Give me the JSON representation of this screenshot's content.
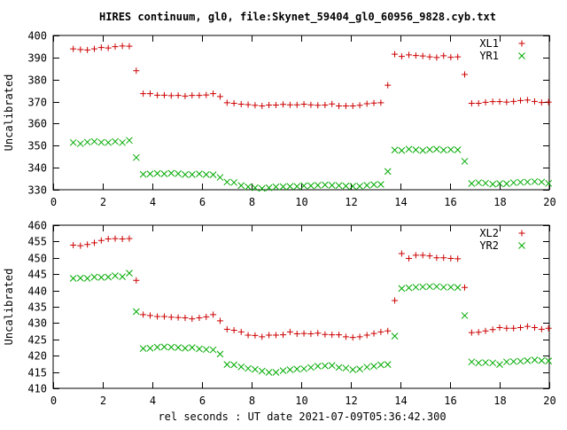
{
  "title": "HIRES continuum, gl0, file:Skynet_59404_gl0_60956_9828.cyb.txt",
  "xlabel": "rel seconds : UT date 2021-07-09T05:36:42.300",
  "chart_data": [
    {
      "type": "scatter",
      "ylabel": "Uncalibrated",
      "xlim": [
        0,
        20
      ],
      "ylim": [
        330,
        400
      ],
      "xticks": [
        0,
        2,
        4,
        6,
        8,
        10,
        12,
        14,
        16,
        18,
        20
      ],
      "yticks": [
        330,
        340,
        350,
        360,
        370,
        380,
        390,
        400
      ],
      "legend_position": "top-right",
      "x": [
        0.81,
        1.1,
        1.38,
        1.66,
        1.94,
        2.22,
        2.5,
        2.79,
        3.07,
        3.35,
        3.63,
        3.91,
        4.2,
        4.48,
        4.76,
        5.04,
        5.32,
        5.6,
        5.89,
        6.17,
        6.45,
        6.73,
        7.01,
        7.29,
        7.58,
        7.86,
        8.14,
        8.42,
        8.7,
        8.98,
        9.27,
        9.55,
        9.83,
        10.11,
        10.39,
        10.67,
        10.96,
        11.24,
        11.52,
        11.8,
        12.08,
        12.36,
        12.65,
        12.93,
        13.21,
        13.49,
        13.77,
        14.05,
        14.34,
        14.62,
        14.9,
        15.18,
        15.46,
        15.74,
        16.03,
        16.31,
        16.59,
        16.87,
        17.15,
        17.43,
        17.72,
        18.0,
        18.28,
        18.56,
        18.84,
        19.12,
        19.41,
        19.69,
        19.97
      ],
      "series": [
        {
          "name": "XL1",
          "marker": "plus",
          "color": "#cc0000",
          "values": [
            393.9,
            393.6,
            393.4,
            393.9,
            394.5,
            394.3,
            394.9,
            395.2,
            395.1,
            384.0,
            373.6,
            373.6,
            372.9,
            372.9,
            372.7,
            372.8,
            372.5,
            372.8,
            372.8,
            373.0,
            373.6,
            372.3,
            369.5,
            369.2,
            368.8,
            368.6,
            368.3,
            368.0,
            368.4,
            368.4,
            368.7,
            368.5,
            368.5,
            368.8,
            368.5,
            368.3,
            368.4,
            368.9,
            368.0,
            368.0,
            368.0,
            368.3,
            369.0,
            369.3,
            369.5,
            377.4,
            391.5,
            390.5,
            391.2,
            390.9,
            390.7,
            390.3,
            390.0,
            390.8,
            390.1,
            390.3,
            382.3,
            369.2,
            369.2,
            369.7,
            370.0,
            370.0,
            369.8,
            370.1,
            370.5,
            370.7,
            370.1,
            369.6,
            369.8
          ]
        },
        {
          "name": "YR1",
          "marker": "cross",
          "color": "#00aa00",
          "values": [
            351.4,
            350.9,
            351.6,
            351.9,
            351.5,
            351.4,
            351.9,
            351.4,
            352.4,
            344.6,
            337.0,
            337.2,
            337.4,
            337.2,
            337.5,
            337.3,
            336.9,
            336.9,
            337.2,
            336.9,
            336.8,
            335.6,
            333.5,
            333.3,
            331.9,
            331.3,
            330.9,
            330.6,
            330.9,
            331.3,
            331.4,
            331.5,
            331.5,
            331.8,
            331.8,
            332.0,
            332.2,
            332.0,
            331.9,
            331.7,
            331.6,
            331.6,
            332.0,
            332.3,
            332.4,
            338.3,
            348.0,
            347.8,
            348.4,
            348.1,
            347.8,
            348.2,
            348.4,
            348.0,
            348.2,
            348.1,
            342.9,
            332.8,
            333.2,
            333.0,
            332.5,
            332.8,
            332.7,
            333.2,
            333.4,
            333.5,
            333.7,
            333.5,
            332.9
          ]
        }
      ]
    },
    {
      "type": "scatter",
      "ylabel": "Uncalibrated",
      "xlim": [
        0,
        20
      ],
      "ylim": [
        410,
        460
      ],
      "xticks": [
        0,
        2,
        4,
        6,
        8,
        10,
        12,
        14,
        16,
        18,
        20
      ],
      "yticks": [
        410,
        415,
        420,
        425,
        430,
        435,
        440,
        445,
        450,
        455,
        460
      ],
      "legend_position": "top-right",
      "x": [
        0.81,
        1.1,
        1.38,
        1.66,
        1.94,
        2.22,
        2.5,
        2.79,
        3.07,
        3.35,
        3.63,
        3.91,
        4.2,
        4.48,
        4.76,
        5.04,
        5.32,
        5.6,
        5.89,
        6.17,
        6.45,
        6.73,
        7.01,
        7.29,
        7.58,
        7.86,
        8.14,
        8.42,
        8.7,
        8.98,
        9.27,
        9.55,
        9.83,
        10.11,
        10.39,
        10.67,
        10.96,
        11.24,
        11.52,
        11.8,
        12.08,
        12.36,
        12.65,
        12.93,
        13.21,
        13.49,
        13.77,
        14.05,
        14.34,
        14.62,
        14.9,
        15.18,
        15.46,
        15.74,
        16.03,
        16.31,
        16.59,
        16.87,
        17.15,
        17.43,
        17.72,
        18.0,
        18.28,
        18.56,
        18.84,
        19.12,
        19.41,
        19.69,
        19.97
      ],
      "series": [
        {
          "name": "XL2",
          "marker": "plus",
          "color": "#cc0000",
          "values": [
            453.9,
            453.7,
            454.1,
            454.6,
            455.3,
            455.8,
            455.9,
            455.8,
            455.9,
            443.1,
            432.6,
            432.3,
            432.0,
            432.0,
            431.8,
            431.7,
            431.6,
            431.3,
            431.6,
            431.9,
            432.6,
            430.7,
            428.1,
            427.8,
            427.3,
            426.3,
            426.2,
            425.8,
            426.3,
            426.3,
            426.4,
            427.3,
            426.7,
            426.8,
            426.7,
            426.9,
            426.5,
            426.4,
            426.4,
            425.8,
            425.6,
            425.8,
            426.3,
            426.8,
            427.3,
            427.6,
            436.9,
            451.3,
            449.8,
            450.8,
            450.8,
            450.6,
            450.0,
            450.0,
            449.8,
            449.7,
            440.9,
            427.1,
            427.2,
            427.6,
            428.0,
            428.6,
            428.4,
            428.4,
            428.6,
            429.0,
            428.6,
            428.1,
            428.4
          ]
        },
        {
          "name": "YR2",
          "marker": "cross",
          "color": "#00aa00",
          "values": [
            443.7,
            443.8,
            443.7,
            444.1,
            444.0,
            444.1,
            444.5,
            444.2,
            445.3,
            433.5,
            422.2,
            422.3,
            422.6,
            422.7,
            422.6,
            422.5,
            422.3,
            422.5,
            422.1,
            421.9,
            421.8,
            420.5,
            417.3,
            417.2,
            416.6,
            416.1,
            415.8,
            415.3,
            414.9,
            414.9,
            415.4,
            415.7,
            415.9,
            416.0,
            416.4,
            416.8,
            416.9,
            417.0,
            416.4,
            416.2,
            415.7,
            415.9,
            416.5,
            416.8,
            417.2,
            417.3,
            426.0,
            440.6,
            440.8,
            441.0,
            441.1,
            441.2,
            441.2,
            441.0,
            441.0,
            440.9,
            432.3,
            418.1,
            417.8,
            417.9,
            417.8,
            417.3,
            418.1,
            418.2,
            418.3,
            418.5,
            418.7,
            418.5,
            418.4
          ]
        }
      ]
    }
  ]
}
